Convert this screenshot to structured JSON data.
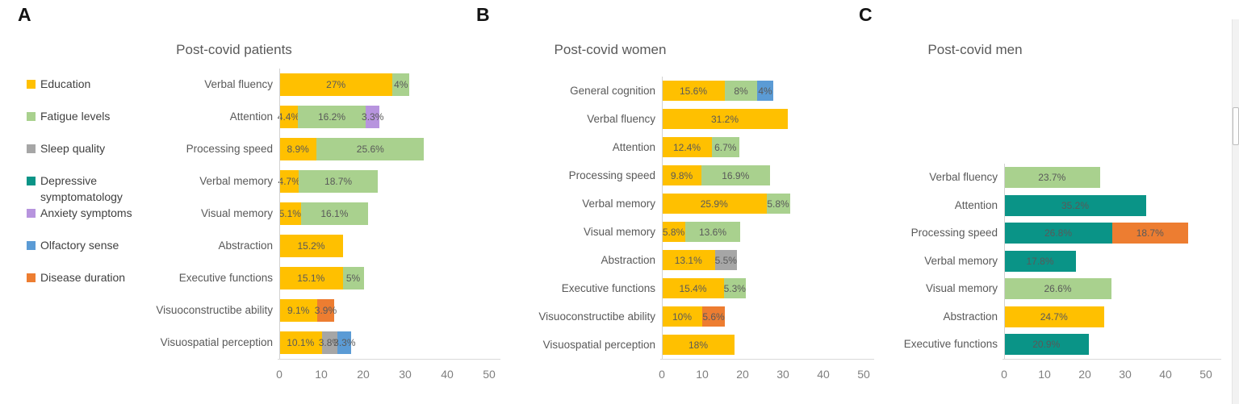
{
  "figure": {
    "panel_labels": [
      "A",
      "B",
      "C"
    ]
  },
  "legend": {
    "items": [
      {
        "key": "education",
        "label": "Education"
      },
      {
        "key": "fatigue",
        "label": "Fatigue levels"
      },
      {
        "key": "sleep",
        "label": "Sleep quality"
      },
      {
        "key": "depressive",
        "label": "Depressive symptomatology"
      },
      {
        "key": "anxiety",
        "label": "Anxiety symptoms"
      },
      {
        "key": "olfactory",
        "label": "Olfactory sense"
      },
      {
        "key": "disease",
        "label": "Disease duration"
      }
    ]
  },
  "series_colors": {
    "education": "#FFC000",
    "fatigue": "#A9D18E",
    "sleep": "#A6A6A6",
    "depressive": "#0A9487",
    "anxiety": "#B794DE",
    "olfactory": "#5B9BD5",
    "disease": "#ED7D31"
  },
  "chart_data": [
    {
      "type": "bar",
      "orientation": "horizontal",
      "title": "Post-covid patients",
      "xlim": [
        0,
        50
      ],
      "xticks": [
        "0",
        "10",
        "20",
        "30",
        "40",
        "50"
      ],
      "grid": false,
      "rows": [
        {
          "label": "Verbal fluency",
          "segments": [
            {
              "series": "education",
              "value": 27,
              "label": "27%"
            },
            {
              "series": "fatigue",
              "value": 4,
              "label": "4%"
            }
          ]
        },
        {
          "label": "Attention",
          "segments": [
            {
              "series": "education",
              "value": 4.4,
              "label": "4.4%"
            },
            {
              "series": "fatigue",
              "value": 16.2,
              "label": "16.2%"
            },
            {
              "series": "anxiety",
              "value": 3.3,
              "label": "3.3%"
            }
          ]
        },
        {
          "label": "Processing speed",
          "segments": [
            {
              "series": "education",
              "value": 8.9,
              "label": "8.9%"
            },
            {
              "series": "fatigue",
              "value": 25.6,
              "label": "25.6%"
            }
          ]
        },
        {
          "label": "Verbal memory",
          "segments": [
            {
              "series": "education",
              "value": 4.7,
              "label": "4.7%"
            },
            {
              "series": "fatigue",
              "value": 18.7,
              "label": "18.7%"
            }
          ]
        },
        {
          "label": "Visual memory",
          "segments": [
            {
              "series": "education",
              "value": 5.1,
              "label": "5.1%"
            },
            {
              "series": "fatigue",
              "value": 16.1,
              "label": "16.1%"
            }
          ]
        },
        {
          "label": "Abstraction",
          "segments": [
            {
              "series": "education",
              "value": 15.2,
              "label": "15.2%"
            }
          ]
        },
        {
          "label": "Executive functions",
          "segments": [
            {
              "series": "education",
              "value": 15.1,
              "label": "15.1%"
            },
            {
              "series": "fatigue",
              "value": 5,
              "label": "5%"
            }
          ]
        },
        {
          "label": "Visuoconstructibe ability",
          "segments": [
            {
              "series": "education",
              "value": 9.1,
              "label": "9.1%"
            },
            {
              "series": "disease",
              "value": 3.9,
              "label": "3.9%"
            }
          ]
        },
        {
          "label": "Visuospatial perception",
          "segments": [
            {
              "series": "education",
              "value": 10.1,
              "label": "10.1%"
            },
            {
              "series": "sleep",
              "value": 3.8,
              "label": "3.8%"
            },
            {
              "series": "olfactory",
              "value": 3.3,
              "label": "3.3%"
            }
          ]
        }
      ]
    },
    {
      "type": "bar",
      "orientation": "horizontal",
      "title": "Post-covid women",
      "xlim": [
        0,
        50
      ],
      "xticks": [
        "0",
        "10",
        "20",
        "30",
        "40",
        "50"
      ],
      "grid": false,
      "rows": [
        {
          "label": "General cognition",
          "segments": [
            {
              "series": "education",
              "value": 15.6,
              "label": "15.6%"
            },
            {
              "series": "fatigue",
              "value": 8,
              "label": "8%"
            },
            {
              "series": "olfactory",
              "value": 4,
              "label": "4%"
            }
          ]
        },
        {
          "label": "Verbal fluency",
          "segments": [
            {
              "series": "education",
              "value": 31.2,
              "label": "31.2%"
            }
          ]
        },
        {
          "label": "Attention",
          "segments": [
            {
              "series": "education",
              "value": 12.4,
              "label": "12.4%"
            },
            {
              "series": "fatigue",
              "value": 6.7,
              "label": "6.7%"
            }
          ]
        },
        {
          "label": "Processing speed",
          "segments": [
            {
              "series": "education",
              "value": 9.8,
              "label": "9.8%"
            },
            {
              "series": "fatigue",
              "value": 16.9,
              "label": "16.9%"
            }
          ]
        },
        {
          "label": "Verbal memory",
          "segments": [
            {
              "series": "education",
              "value": 25.9,
              "label": "25.9%"
            },
            {
              "series": "fatigue",
              "value": 5.8,
              "label": "5.8%"
            }
          ]
        },
        {
          "label": "Visual memory",
          "segments": [
            {
              "series": "education",
              "value": 5.8,
              "label": "5.8%"
            },
            {
              "series": "fatigue",
              "value": 13.6,
              "label": "13.6%"
            }
          ]
        },
        {
          "label": "Abstraction",
          "segments": [
            {
              "series": "education",
              "value": 13.1,
              "label": "13.1%"
            },
            {
              "series": "sleep",
              "value": 5.5,
              "label": "5.5%"
            }
          ]
        },
        {
          "label": "Executive functions",
          "segments": [
            {
              "series": "education",
              "value": 15.4,
              "label": "15.4%"
            },
            {
              "series": "fatigue",
              "value": 5.3,
              "label": "5.3%"
            }
          ]
        },
        {
          "label": "Visuoconstructibe ability",
          "segments": [
            {
              "series": "education",
              "value": 10,
              "label": "10%"
            },
            {
              "series": "disease",
              "value": 5.6,
              "label": "5.6%"
            }
          ]
        },
        {
          "label": "Visuospatial perception",
          "segments": [
            {
              "series": "education",
              "value": 18,
              "label": "18%"
            }
          ]
        }
      ]
    },
    {
      "type": "bar",
      "orientation": "horizontal",
      "title": "Post-covid men",
      "xlim": [
        0,
        50
      ],
      "xticks": [
        "0",
        "10",
        "20",
        "30",
        "40",
        "50"
      ],
      "grid": false,
      "rows": [
        {
          "label": "Verbal fluency",
          "segments": [
            {
              "series": "fatigue",
              "value": 23.7,
              "label": "23.7%"
            }
          ]
        },
        {
          "label": "Attention",
          "segments": [
            {
              "series": "depressive",
              "value": 35.2,
              "label": "35.2%"
            }
          ]
        },
        {
          "label": "Processing speed",
          "segments": [
            {
              "series": "depressive",
              "value": 26.8,
              "label": "26.8%"
            },
            {
              "series": "disease",
              "value": 18.7,
              "label": "18.7%"
            }
          ]
        },
        {
          "label": "Verbal memory",
          "segments": [
            {
              "series": "depressive",
              "value": 17.8,
              "label": "17.8%"
            }
          ]
        },
        {
          "label": "Visual memory",
          "segments": [
            {
              "series": "fatigue",
              "value": 26.6,
              "label": "26.6%"
            }
          ]
        },
        {
          "label": "Abstraction",
          "segments": [
            {
              "series": "education",
              "value": 24.7,
              "label": "24.7%"
            }
          ]
        },
        {
          "label": "Executive functions",
          "segments": [
            {
              "series": "depressive",
              "value": 20.9,
              "label": "20.9%"
            }
          ]
        }
      ]
    }
  ]
}
